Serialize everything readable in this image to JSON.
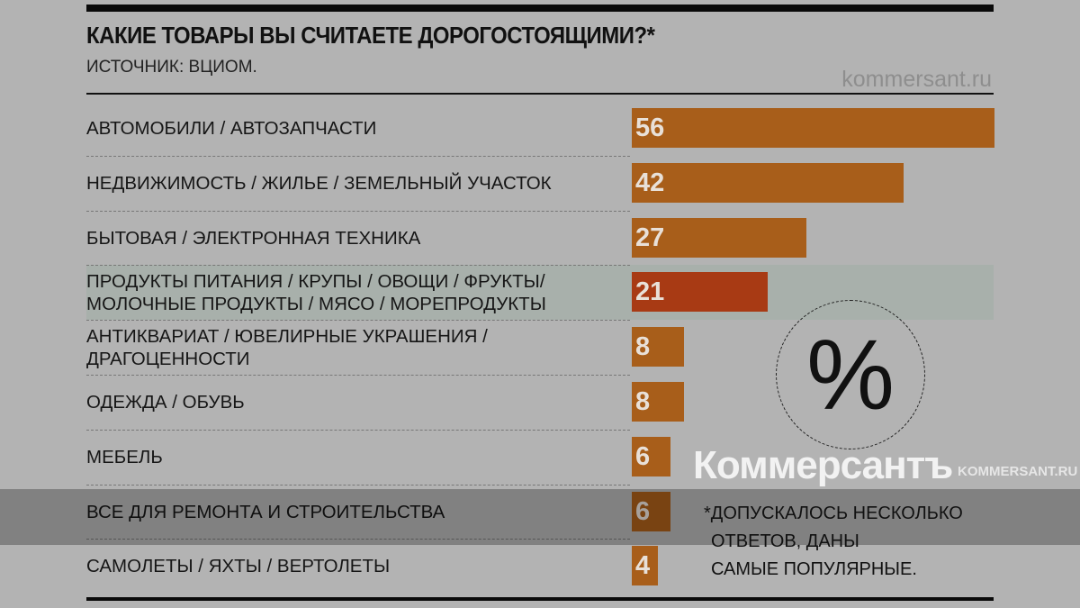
{
  "chart_data": {
    "type": "bar",
    "title": "КАКИЕ ТОВАРЫ ВЫ СЧИТАЕТЕ ДОРОГОСТОЯЩИМИ?*",
    "subtitle": "ИСТОЧНИК: ВЦИОМ.",
    "unit_symbol": "%",
    "categories": [
      "АВТОМОБИЛИ / АВТОЗАПЧАСТИ",
      "НЕДВИЖИМОСТЬ / ЖИЛЬЕ / ЗЕМЕЛЬНЫЙ УЧАСТОК",
      "БЫТОВАЯ / ЭЛЕКТРОННАЯ ТЕХНИКА",
      "ПРОДУКТЫ ПИТАНИЯ / КРУПЫ / ОВОЩИ / ФРУКТЫ/ МОЛОЧНЫЕ ПРОДУКТЫ / МЯСО / МОРЕПРОДУКТЫ",
      "АНТИКВАРИАТ / ЮВЕЛИРНЫЕ УКРАШЕНИЯ / ДРАГОЦЕННОСТИ",
      "ОДЕЖДА / ОБУВЬ",
      "МЕБЕЛЬ",
      "ВСЕ ДЛЯ РЕМОНТА И СТРОИТЕЛЬСТВА",
      "САМОЛЕТЫ / ЯХТЫ / ВЕРТОЛЕТЫ"
    ],
    "values": [
      56,
      42,
      27,
      21,
      8,
      8,
      6,
      6,
      4
    ],
    "highlight_index": 3,
    "xlim": [
      0,
      56
    ],
    "footnote": [
      "*ДОПУСКАЛОСЬ НЕСКОЛЬКО",
      "ОТВЕТОВ, ДАНЫ",
      "САМЫЕ ПОПУЛЯРНЫЕ."
    ]
  },
  "colors": {
    "bar": "#a85e1a",
    "highlight": "#a83a14",
    "background": "#b3b3b3"
  },
  "site": "kommersant.ru",
  "watermark": {
    "logo": "Коммерсантъ",
    "url": "KOMMERSANT.RU"
  }
}
